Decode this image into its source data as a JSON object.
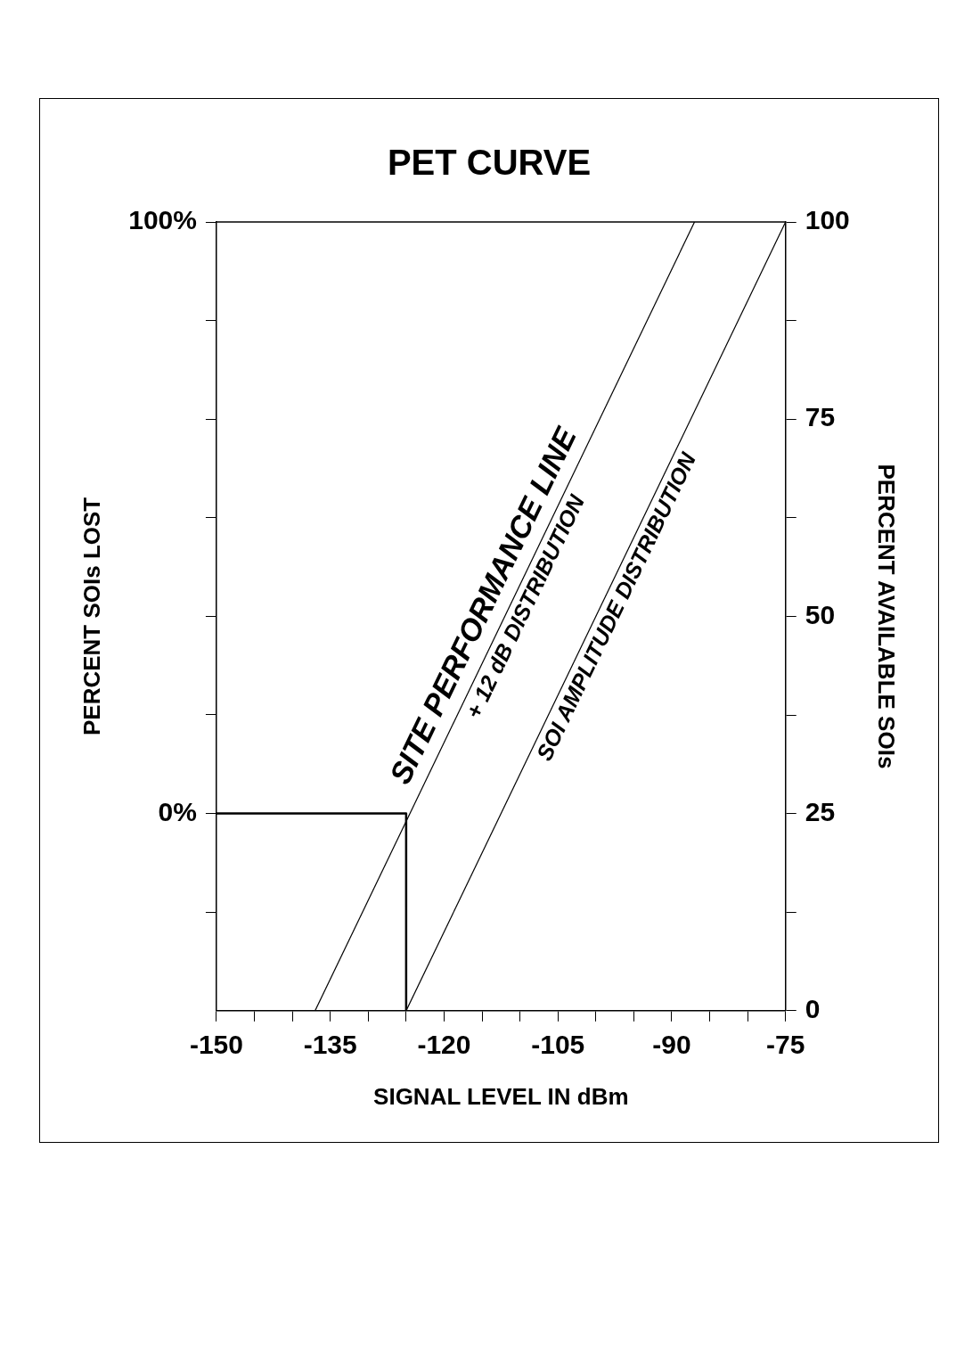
{
  "chart_data": {
    "type": "line",
    "title": "PET CURVE",
    "xlabel": "SIGNAL LEVEL IN dBm",
    "ylabel": "PERCENT SOIs LOST",
    "y2label": "PERCENT AVAILABLE SOIs",
    "xlim": [
      -150,
      -75
    ],
    "xticks": [
      -150,
      {
        "value": -145,
        "label": null
      },
      {
        "value": -140,
        "label": null
      },
      -135,
      {
        "value": -130,
        "label": null
      },
      {
        "value": -125,
        "label": null
      },
      -120,
      {
        "value": -115,
        "label": null
      },
      {
        "value": -110,
        "label": null
      },
      -105,
      {
        "value": -100,
        "label": null
      },
      {
        "value": -95,
        "label": null
      },
      -90,
      {
        "value": -85,
        "label": null
      },
      {
        "value": -80,
        "label": null
      },
      -75
    ],
    "ylim": [
      -33.3,
      100
    ],
    "yticks": [
      {
        "value": -16.7,
        "label": null
      },
      {
        "value": 0,
        "label": "0%"
      },
      {
        "value": 16.7,
        "label": null
      },
      {
        "value": 33.3,
        "label": null
      },
      {
        "value": 50,
        "label": null
      },
      {
        "value": 66.7,
        "label": null
      },
      {
        "value": 83.3,
        "label": null
      },
      {
        "value": 100,
        "label": "100%"
      }
    ],
    "y2lim": [
      0,
      100
    ],
    "y2ticks": [
      0,
      {
        "value": 12.5,
        "label": null
      },
      25,
      {
        "value": 37.5,
        "label": null
      },
      50,
      {
        "value": 62.5,
        "label": null
      },
      75,
      {
        "value": 87.5,
        "label": null
      },
      100
    ],
    "grid": false,
    "legend": false,
    "marker": "none",
    "line_style": "solid",
    "annotations": [
      "SITE PERFORMANCE LINE"
    ],
    "series": [
      {
        "name": "+ 12 dB DISTRIBUTION",
        "color": "#000000",
        "axis": "y2",
        "x": [
          -137,
          -87
        ],
        "values": [
          0,
          100
        ]
      },
      {
        "name": "SOI AMPLITUDE DISTRIBUTION",
        "color": "#000000",
        "axis": "y2",
        "x": [
          -125,
          -75
        ],
        "values": [
          0,
          100
        ]
      },
      {
        "color": "#000000",
        "axis": "y2",
        "x": [
          -150,
          -125,
          -125
        ],
        "values": [
          25,
          25,
          0
        ]
      }
    ]
  }
}
